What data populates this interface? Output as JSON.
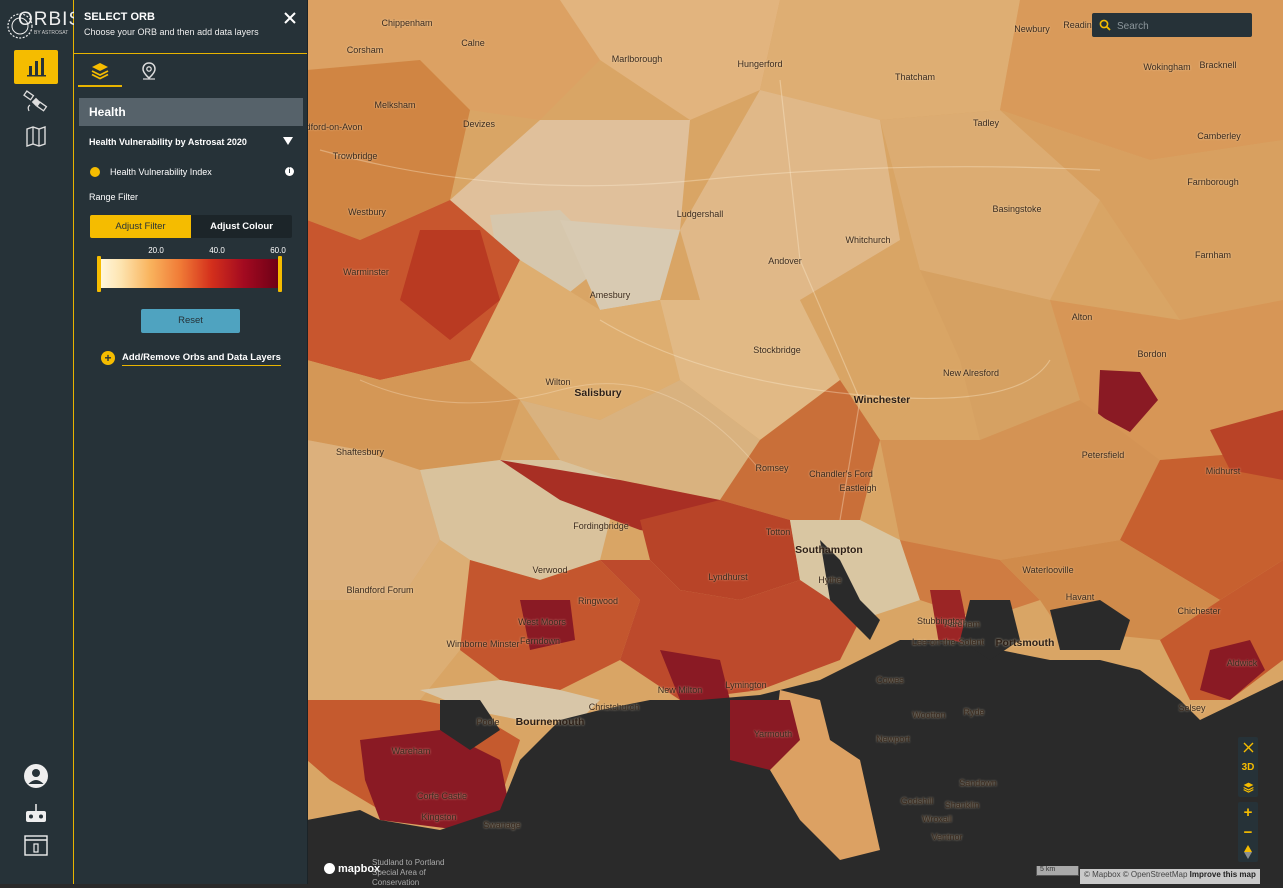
{
  "app": {
    "logo_text": "ORBIS",
    "logo_sub": "BY ASTROSAT"
  },
  "rail": {
    "items": [
      {
        "name": "analysis-icon",
        "active": true
      },
      {
        "name": "satellite-icon",
        "active": false
      },
      {
        "name": "map-icon",
        "active": false
      }
    ],
    "bottom_items": [
      "account-icon",
      "drone-icon",
      "info-panel-icon"
    ]
  },
  "panel": {
    "title": "SELECT ORB",
    "subtitle": "Choose your ORB and then add data layers",
    "tabs": [
      "layers-icon",
      "location-pin-icon"
    ],
    "section": "Health",
    "layer_title": "Health Vulnerability by Astrosat 2020",
    "property_label": "Health Vulnerability Index",
    "range_label": "Range Filter",
    "toggle": {
      "filter_label": "Adjust Filter",
      "colour_label": "Adjust Colour",
      "active": "filter"
    },
    "ticks": [
      "20.0",
      "40.0",
      "60.0"
    ],
    "reset_label": "Reset",
    "add_remove_label": "Add/Remove Orbs and Data Layers"
  },
  "search": {
    "placeholder": "Search"
  },
  "map": {
    "zoom_controls": {
      "plus": "+",
      "minus": "−"
    },
    "view_3d_label": "3D",
    "scale_label": "5 km",
    "attribution": "© Mapbox © OpenStreetMap",
    "improve_label": "Improve this map",
    "brand": "mapbox",
    "protected_area": "Studland to Portland\nSpecial Area of\nConservation",
    "places": [
      {
        "name": "Chippenham",
        "big": false
      },
      {
        "name": "Calne",
        "big": false
      },
      {
        "name": "Corsham",
        "big": false
      },
      {
        "name": "Marlborough",
        "big": false
      },
      {
        "name": "Hungerford",
        "big": false
      },
      {
        "name": "Newbury",
        "big": false
      },
      {
        "name": "Thatcham",
        "big": false
      },
      {
        "name": "Reading",
        "big": false
      },
      {
        "name": "Bracknell",
        "big": false
      },
      {
        "name": "Wokingham",
        "big": false
      },
      {
        "name": "Melksham",
        "big": false
      },
      {
        "name": "Devizes",
        "big": false
      },
      {
        "name": "Bradford-on-Avon",
        "big": false
      },
      {
        "name": "Trowbridge",
        "big": false
      },
      {
        "name": "Tadley",
        "big": false
      },
      {
        "name": "Camberley",
        "big": false
      },
      {
        "name": "Westbury",
        "big": false
      },
      {
        "name": "Warminster",
        "big": false
      },
      {
        "name": "Andover",
        "big": false
      },
      {
        "name": "Ludgershall",
        "big": false
      },
      {
        "name": "Basingstoke",
        "big": false
      },
      {
        "name": "Farnborough",
        "big": false
      },
      {
        "name": "Whitchurch",
        "big": false
      },
      {
        "name": "Amesbury",
        "big": false
      },
      {
        "name": "Alton",
        "big": false
      },
      {
        "name": "Farnham",
        "big": false
      },
      {
        "name": "Salisbury",
        "big": true
      },
      {
        "name": "Wilton",
        "big": false
      },
      {
        "name": "Stockbridge",
        "big": false
      },
      {
        "name": "Winchester",
        "big": true
      },
      {
        "name": "New Alresford",
        "big": false
      },
      {
        "name": "Bordon",
        "big": false
      },
      {
        "name": "Shaftesbury",
        "big": false
      },
      {
        "name": "Romsey",
        "big": false
      },
      {
        "name": "Chandler's Ford",
        "big": false
      },
      {
        "name": "Eastleigh",
        "big": false
      },
      {
        "name": "Petersfield",
        "big": false
      },
      {
        "name": "Midhurst",
        "big": false
      },
      {
        "name": "Fordingbridge",
        "big": false
      },
      {
        "name": "Totton",
        "big": false
      },
      {
        "name": "Southampton",
        "big": true
      },
      {
        "name": "Waterlooville",
        "big": false
      },
      {
        "name": "Havant",
        "big": false
      },
      {
        "name": "Chichester",
        "big": false
      },
      {
        "name": "Blandford Forum",
        "big": false
      },
      {
        "name": "Verwood",
        "big": false
      },
      {
        "name": "Ringwood",
        "big": false
      },
      {
        "name": "Lyndhurst",
        "big": false
      },
      {
        "name": "Hythe",
        "big": false
      },
      {
        "name": "Fareham",
        "big": false
      },
      {
        "name": "Portsmouth",
        "big": true
      },
      {
        "name": "West Moors",
        "big": false
      },
      {
        "name": "Ferndown",
        "big": false
      },
      {
        "name": "Wimborne Minster",
        "big": false
      },
      {
        "name": "Stubbington",
        "big": false
      },
      {
        "name": "Lee-on-the-Solent",
        "big": false
      },
      {
        "name": "New Milton",
        "big": false
      },
      {
        "name": "Lymington",
        "big": false
      },
      {
        "name": "Christchurch",
        "big": false
      },
      {
        "name": "Bournemouth",
        "big": true
      },
      {
        "name": "Poole",
        "big": false
      },
      {
        "name": "Cowes",
        "big": false
      },
      {
        "name": "Ryde",
        "big": false
      },
      {
        "name": "Wootton",
        "big": false
      },
      {
        "name": "Selsey",
        "big": false
      },
      {
        "name": "Aldwick",
        "big": false
      },
      {
        "name": "Yarmouth",
        "big": false
      },
      {
        "name": "Newport",
        "big": false
      },
      {
        "name": "Wareham",
        "big": false
      },
      {
        "name": "Sandown",
        "big": false
      },
      {
        "name": "Shanklin",
        "big": false
      },
      {
        "name": "Godshill",
        "big": false
      },
      {
        "name": "Wroxall",
        "big": false
      },
      {
        "name": "Ventnor",
        "big": false
      },
      {
        "name": "Swanage",
        "big": false
      },
      {
        "name": "Corfe Castle",
        "big": false
      },
      {
        "name": "Kingston",
        "big": false
      }
    ]
  },
  "colors": {
    "accent": "#f5bc00",
    "panel_bg": "#263238",
    "sea": "#2a2a2a",
    "choropleth": [
      "#d9c4a0",
      "#e4b277",
      "#dc9757",
      "#d07a3f",
      "#bf5a2e",
      "#a93123",
      "#8a1a24"
    ]
  }
}
